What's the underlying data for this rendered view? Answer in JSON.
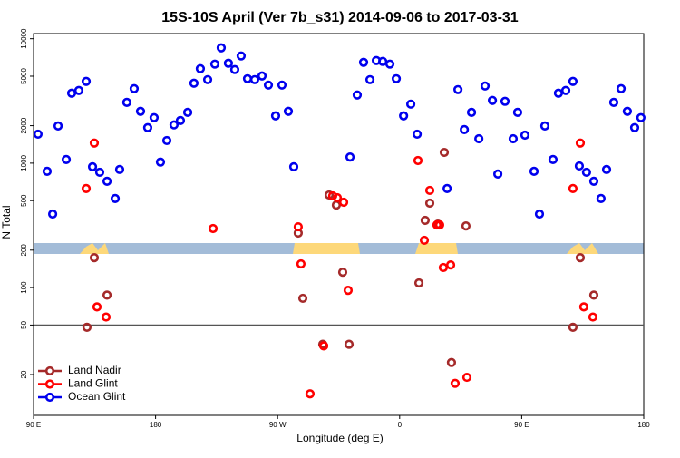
{
  "chart_data": {
    "type": "scatter",
    "title": "15S-10S April (Ver 7b_s31)   2014-09-06 to 2017-03-31",
    "xlabel": "Longitude (deg E)",
    "ylabel": "N Total",
    "xlim": [
      90,
      540
    ],
    "ylim": [
      9.4,
      11000
    ],
    "log_y": true,
    "hline": 50,
    "legend": "lower left",
    "xticks": [
      {
        "value": 90,
        "label": "90 E"
      },
      180,
      {
        "value": 270,
        "label": "90 W"
      },
      {
        "value": 360,
        "label": "0"
      },
      {
        "value": 450,
        "label": "90 E"
      },
      {
        "value": 540,
        "label": "180"
      }
    ],
    "yticks": [
      20,
      50,
      100,
      200,
      500,
      1000,
      2000,
      5000,
      10000
    ],
    "series": [
      {
        "name": "Land Nadir",
        "color": "#a52a2a",
        "x": [
          129.4,
          134.8,
          144.2,
          285.2,
          288.6,
          303.3,
          308.0,
          313.3,
          318.0,
          322.7,
          374.2,
          378.8,
          382.2,
          388.2,
          392.9,
          398.2,
          408.9,
          487.8,
          493.2,
          503.2
        ],
        "values": [
          48,
          174,
          87,
          274,
          82,
          35,
          555,
          460,
          133,
          35,
          109,
          347,
          477,
          324,
          1220,
          25,
          313,
          48,
          174,
          87
        ]
      },
      {
        "name": "Land Glint",
        "color": "#ff0000",
        "x": [
          128.8,
          134.8,
          136.8,
          143.5,
          222.4,
          285.2,
          287.2,
          293.9,
          304.0,
          310.6,
          314.0,
          318.7,
          322.0,
          373.5,
          378.2,
          382.2,
          387.5,
          389.5,
          392.2,
          397.6,
          400.9,
          409.6,
          487.8,
          493.2,
          495.8,
          502.5
        ],
        "values": [
          625,
          1450,
          70,
          58,
          298,
          308,
          155,
          14,
          34,
          546,
          528,
          485,
          95,
          1050,
          240,
          604,
          319,
          319,
          145,
          152,
          17,
          19,
          625,
          1450,
          70,
          58
        ]
      },
      {
        "name": "Ocean Glint",
        "color": "#0000ee",
        "x": [
          93.3,
          100.0,
          104.1,
          108.1,
          114.1,
          118.1,
          123.4,
          128.8,
          133.5,
          138.8,
          144.2,
          150.2,
          153.5,
          158.8,
          164.2,
          168.9,
          174.2,
          178.9,
          183.6,
          188.3,
          193.6,
          198.3,
          203.7,
          208.3,
          213.0,
          218.4,
          223.7,
          228.4,
          233.7,
          238.4,
          243.1,
          247.8,
          253.1,
          258.5,
          263.2,
          268.5,
          273.2,
          277.9,
          281.9,
          323.4,
          328.7,
          333.4,
          338.1,
          342.8,
          347.5,
          352.8,
          357.5,
          362.9,
          368.2,
          372.9,
          395.0,
          403.0,
          407.7,
          413.0,
          418.4,
          423.0,
          428.4,
          432.4,
          437.7,
          443.7,
          447.0,
          452.4,
          459.1,
          463.1,
          467.1,
          473.1,
          477.1,
          482.5,
          487.8,
          492.5,
          497.8,
          503.2,
          508.5,
          512.6,
          517.9,
          523.3,
          527.9,
          533.3,
          537.9
        ],
        "values": [
          1710,
          860,
          390,
          1990,
          1070,
          3650,
          3840,
          4540,
          935,
          845,
          715,
          520,
          890,
          3080,
          3970,
          2610,
          1930,
          2320,
          1020,
          1520,
          2030,
          2200,
          2560,
          4390,
          5740,
          4690,
          6250,
          8450,
          6350,
          5650,
          7270,
          4770,
          4690,
          5020,
          4240,
          2400,
          4240,
          2610,
          935,
          1120,
          3530,
          6460,
          4690,
          6680,
          6570,
          6250,
          4770,
          2400,
          2980,
          1710,
          625,
          3900,
          1860,
          2560,
          1570,
          4170,
          3190,
          818,
          3140,
          1570,
          2560,
          1680,
          860,
          390,
          1990,
          1070,
          3650,
          3840,
          4540,
          950,
          845,
          715,
          520,
          890,
          3080,
          3970,
          2610,
          1930,
          2320
        ]
      }
    ]
  }
}
